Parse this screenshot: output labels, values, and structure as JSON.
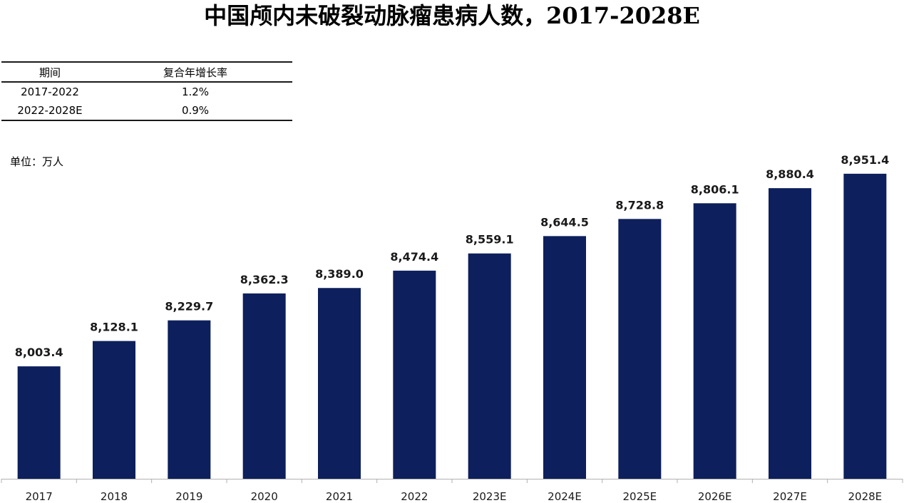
{
  "title": "中国颅内未破裂动脉瘤患病人数，2017-2028E",
  "cagr_table": {
    "headers": [
      "期间",
      "复合年增长率"
    ],
    "rows": [
      {
        "period": "2017-2022",
        "cagr": "1.2%"
      },
      {
        "period": "2022-2028E",
        "cagr": "0.9%"
      }
    ]
  },
  "unit_label": "单位：万人",
  "chart_data": {
    "type": "bar",
    "categories": [
      "2017",
      "2018",
      "2019",
      "2020",
      "2021",
      "2022",
      "2023E",
      "2024E",
      "2025E",
      "2026E",
      "2027E",
      "2028E"
    ],
    "values": [
      8003.4,
      8128.1,
      8229.7,
      8362.3,
      8389.0,
      8474.4,
      8559.1,
      8644.5,
      8728.8,
      8806.1,
      8880.4,
      8951.4
    ],
    "value_labels": [
      "8,003.4",
      "8,128.1",
      "8,229.7",
      "8,362.3",
      "8,389.0",
      "8,474.4",
      "8,559.1",
      "8,644.5",
      "8,728.8",
      "8,806.1",
      "8,880.4",
      "8,951.4"
    ],
    "bar_color": "#0d1f5c",
    "axis_color": "#b0b0b0",
    "ylim": [
      7450,
      9000
    ],
    "grid": false,
    "legend": "none"
  }
}
